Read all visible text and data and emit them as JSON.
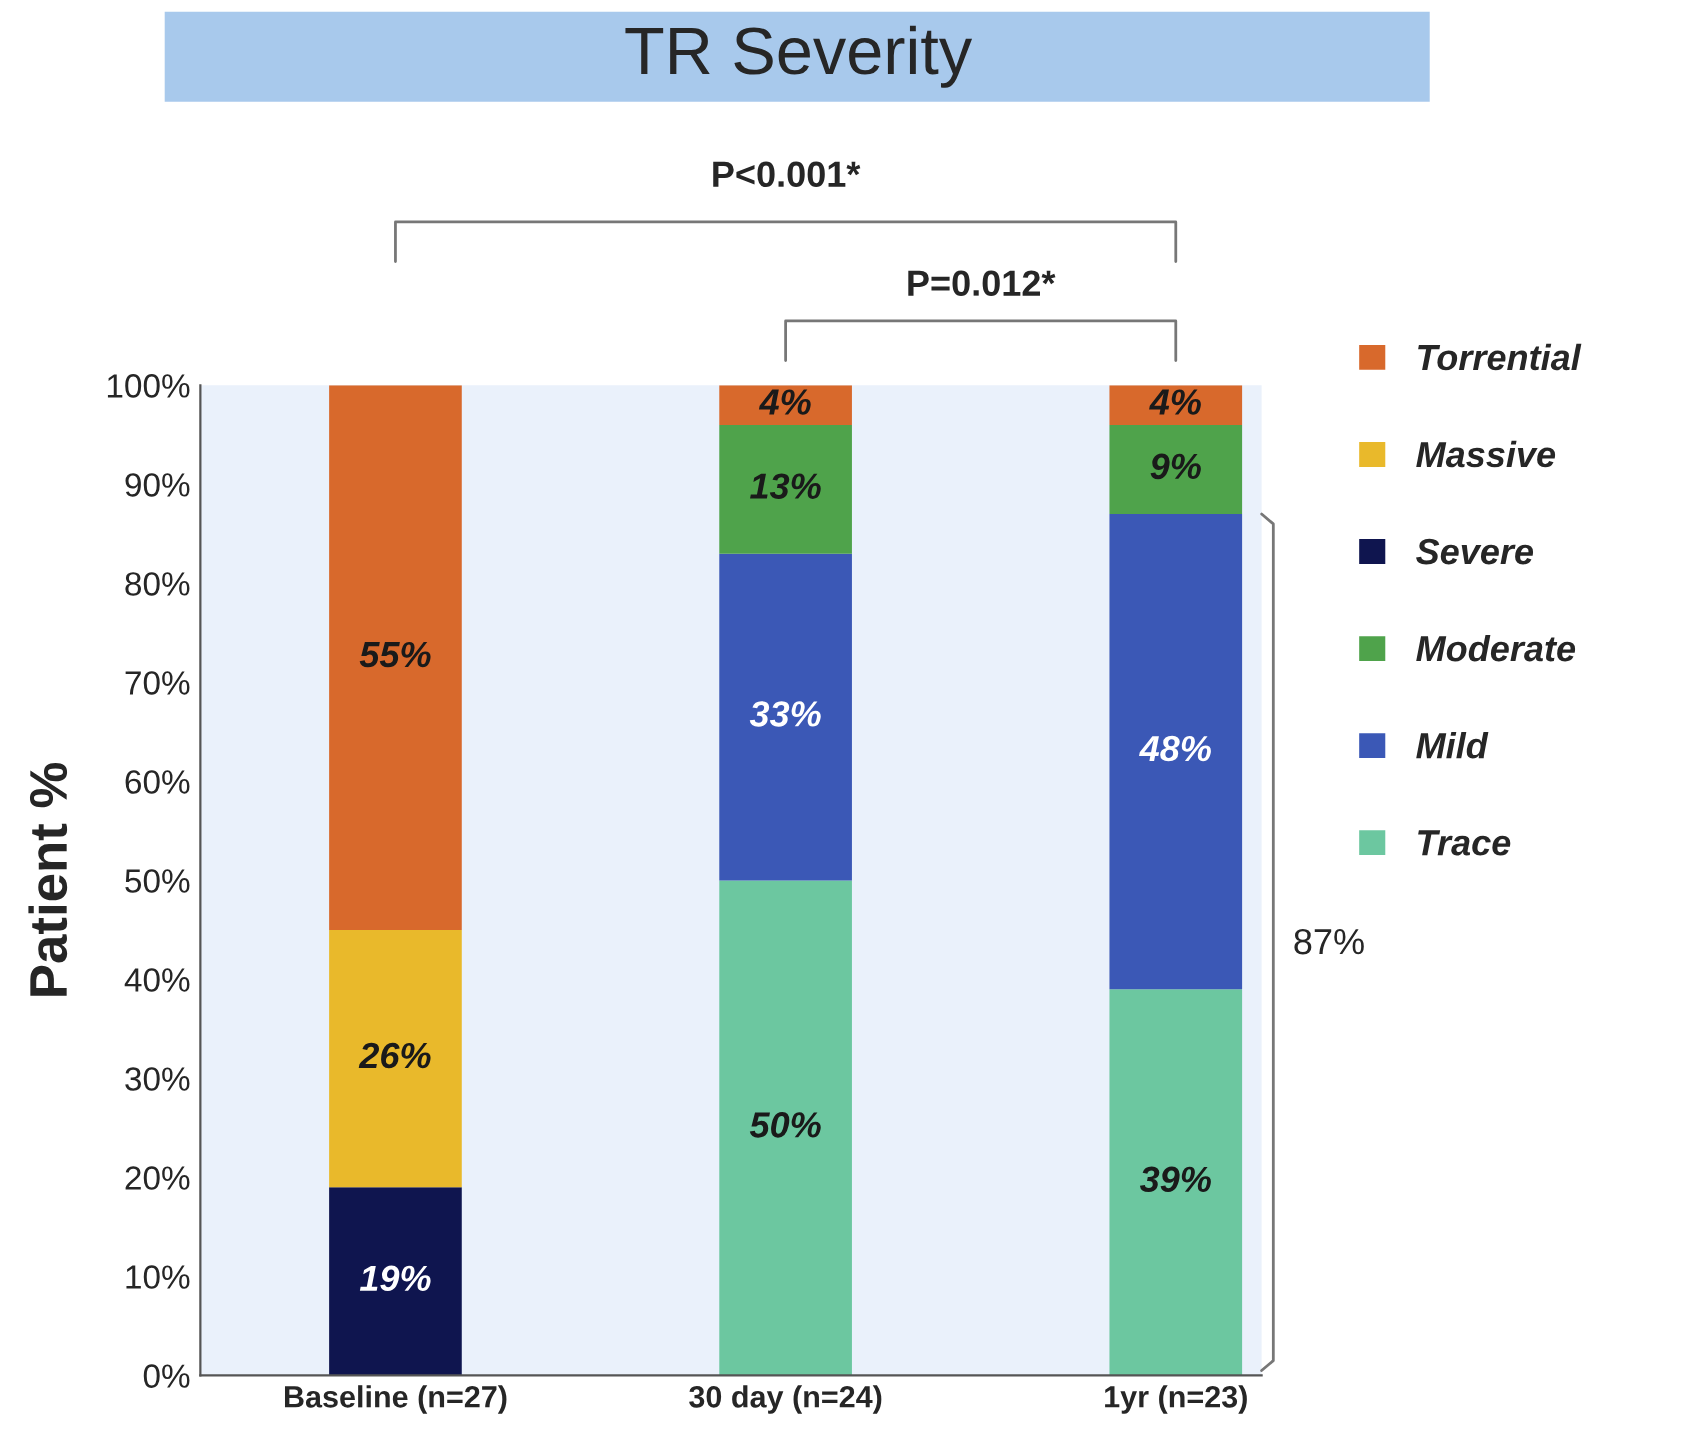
{
  "chart_data": {
    "type": "bar",
    "title": "TR Severity",
    "ylabel": "Patient %",
    "categories": [
      "Baseline (n=27)",
      "30 day (n=24)",
      "1yr (n=23)"
    ],
    "stacked": true,
    "series": [
      {
        "name": "Trace",
        "color": "#6cc7a0",
        "values": [
          null,
          50,
          39
        ],
        "value_labels": [
          null,
          "50%",
          "39%"
        ]
      },
      {
        "name": "Mild",
        "color": "#3b58b6",
        "values": [
          null,
          33,
          48
        ],
        "value_labels": [
          null,
          "33%",
          "48%"
        ]
      },
      {
        "name": "Moderate",
        "color": "#4fa34b",
        "values": [
          null,
          13,
          9
        ],
        "value_labels": [
          null,
          "13%",
          "9%"
        ]
      },
      {
        "name": "Severe",
        "color": "#0f154f",
        "values": [
          19,
          null,
          null
        ],
        "value_labels": [
          "19%",
          null,
          null
        ]
      },
      {
        "name": "Massive",
        "color": "#e9b92b",
        "values": [
          26,
          null,
          null
        ],
        "value_labels": [
          "26%",
          null,
          null
        ]
      },
      {
        "name": "Torrential",
        "color": "#d8692c",
        "values": [
          55,
          4,
          4
        ],
        "value_labels": [
          "55%",
          "4%",
          "4%"
        ]
      }
    ],
    "ylim": [
      0,
      100
    ],
    "yticks": [
      {
        "value": 0,
        "label": "0%"
      },
      {
        "value": 10,
        "label": "10%"
      },
      {
        "value": 20,
        "label": "20%"
      },
      {
        "value": 30,
        "label": "30%"
      },
      {
        "value": 40,
        "label": "40%"
      },
      {
        "value": 50,
        "label": "50%"
      },
      {
        "value": 60,
        "label": "60%"
      },
      {
        "value": 70,
        "label": "70%"
      },
      {
        "value": 80,
        "label": "80%"
      },
      {
        "value": 90,
        "label": "90%"
      },
      {
        "value": 100,
        "label": "100%"
      }
    ],
    "legend": "right",
    "annotations": [
      "P<0.001*",
      "P=0.012*",
      "87%"
    ]
  }
}
